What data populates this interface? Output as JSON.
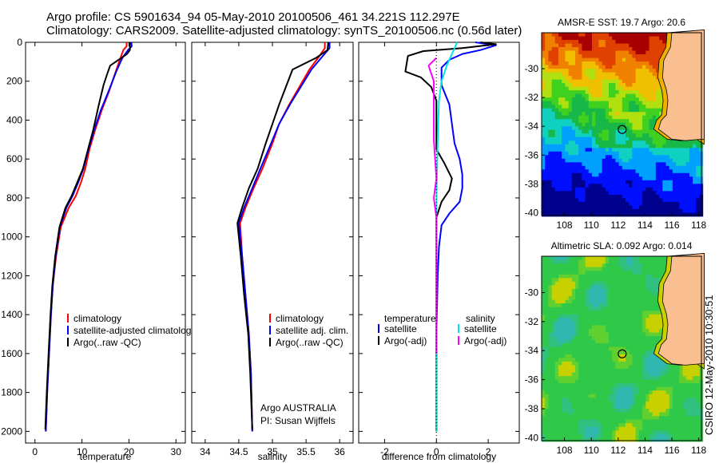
{
  "header": {
    "line1": "Argo profile: CS 5901634_94 05-May-2010 20100506_461 34.221S 112.297E",
    "line2": "Climatology: CARS2009. Satellite-adjusted climatology: synTS_20100506.nc (0.56d later)"
  },
  "side_label": "CSIRO 12-May-2010 10:30:51",
  "colors": {
    "climatology": "#ff0000",
    "satellite": "#0000ff",
    "argo": "#000000",
    "salinity_sat": "#00e5e5",
    "salinity_argo": "#ff00ff",
    "land": "#f9bf91",
    "frame": "#000000"
  },
  "chart_data": [
    {
      "id": "temperature",
      "type": "line",
      "xlabel": "temperature",
      "xlim": [
        -2,
        32
      ],
      "xticks": [
        0,
        10,
        20,
        30
      ],
      "ylim": [
        0,
        2060
      ],
      "yticks": [
        0,
        200,
        400,
        600,
        800,
        1000,
        1200,
        1400,
        1600,
        1800,
        2000
      ],
      "y_reversed": true,
      "legend": [
        "climatology",
        "satellite-adjusted climatology",
        "Argo(..raw -QC)"
      ],
      "series": [
        {
          "name": "climatology",
          "color": "#ff0000",
          "points": [
            [
              19.5,
              0
            ],
            [
              19.5,
              20
            ],
            [
              18.8,
              40
            ],
            [
              18.2,
              80
            ],
            [
              17.2,
              150
            ],
            [
              15.8,
              250
            ],
            [
              14.2,
              350
            ],
            [
              12.8,
              450
            ],
            [
              11.6,
              550
            ],
            [
              10.7,
              650
            ],
            [
              9.8,
              720
            ],
            [
              8.7,
              790
            ],
            [
              7.2,
              850
            ],
            [
              5.5,
              950
            ],
            [
              4.5,
              1100
            ],
            [
              3.8,
              1250
            ],
            [
              3.4,
              1400
            ],
            [
              3.0,
              1600
            ],
            [
              2.6,
              1800
            ],
            [
              2.3,
              2000
            ]
          ]
        },
        {
          "name": "satellite",
          "color": "#0000ff",
          "points": [
            [
              20.5,
              0
            ],
            [
              20.6,
              20
            ],
            [
              19.8,
              40
            ],
            [
              18.6,
              80
            ],
            [
              17.3,
              150
            ],
            [
              15.7,
              250
            ],
            [
              14.0,
              350
            ],
            [
              12.6,
              450
            ],
            [
              11.4,
              550
            ],
            [
              10.3,
              650
            ],
            [
              9.2,
              720
            ],
            [
              8.0,
              790
            ],
            [
              6.7,
              850
            ],
            [
              5.3,
              950
            ],
            [
              4.4,
              1100
            ],
            [
              3.8,
              1250
            ],
            [
              3.4,
              1400
            ],
            [
              3.0,
              1600
            ],
            [
              2.6,
              1800
            ],
            [
              2.3,
              2000
            ]
          ]
        },
        {
          "name": "Argo",
          "color": "#000000",
          "points": [
            [
              20.2,
              0
            ],
            [
              20.2,
              40
            ],
            [
              19.6,
              60
            ],
            [
              16.0,
              120
            ],
            [
              15.4,
              160
            ],
            [
              14.6,
              220
            ],
            [
              13.5,
              330
            ],
            [
              12.4,
              450
            ],
            [
              11.3,
              550
            ],
            [
              10.2,
              650
            ],
            [
              9.0,
              720
            ],
            [
              7.8,
              790
            ],
            [
              6.5,
              850
            ],
            [
              5.2,
              950
            ],
            [
              4.3,
              1100
            ],
            [
              3.7,
              1250
            ],
            [
              3.3,
              1400
            ],
            [
              2.9,
              1600
            ],
            [
              2.5,
              1800
            ],
            [
              2.2,
              1990
            ]
          ]
        }
      ]
    },
    {
      "id": "salinity",
      "type": "line",
      "xlabel": "salinity",
      "xlim": [
        33.8,
        36.2
      ],
      "xticks": [
        34,
        34.5,
        35,
        35.5,
        36
      ],
      "xtick_labels": [
        "34",
        "34.5",
        "35",
        "35.5",
        "36"
      ],
      "ylim": [
        0,
        2060
      ],
      "y_reversed": true,
      "legend": [
        "climatology",
        "satellite adj. clim.",
        "Argo(..raw -QC)"
      ],
      "annotation": [
        "Argo AUSTRALIA",
        "PI: Susan Wijffels"
      ],
      "series": [
        {
          "name": "climatology",
          "color": "#ff0000",
          "points": [
            [
              35.78,
              0
            ],
            [
              35.78,
              30
            ],
            [
              35.7,
              70
            ],
            [
              35.55,
              140
            ],
            [
              35.4,
              230
            ],
            [
              35.25,
              320
            ],
            [
              35.1,
              420
            ],
            [
              35.0,
              520
            ],
            [
              34.85,
              650
            ],
            [
              34.72,
              750
            ],
            [
              34.6,
              850
            ],
            [
              34.52,
              930
            ],
            [
              34.55,
              1100
            ],
            [
              34.6,
              1300
            ],
            [
              34.65,
              1500
            ],
            [
              34.68,
              1700
            ],
            [
              34.7,
              2000
            ]
          ]
        },
        {
          "name": "satellite",
          "color": "#0000ff",
          "points": [
            [
              35.85,
              0
            ],
            [
              35.85,
              30
            ],
            [
              35.75,
              70
            ],
            [
              35.58,
              140
            ],
            [
              35.42,
              230
            ],
            [
              35.26,
              320
            ],
            [
              35.1,
              420
            ],
            [
              34.98,
              520
            ],
            [
              34.82,
              650
            ],
            [
              34.7,
              750
            ],
            [
              34.58,
              850
            ],
            [
              34.5,
              930
            ],
            [
              34.55,
              1100
            ],
            [
              34.6,
              1300
            ],
            [
              34.65,
              1500
            ],
            [
              34.68,
              1700
            ],
            [
              34.7,
              2000
            ]
          ]
        },
        {
          "name": "Argo",
          "color": "#000000",
          "points": [
            [
              35.83,
              0
            ],
            [
              35.82,
              40
            ],
            [
              35.65,
              80
            ],
            [
              35.3,
              140
            ],
            [
              35.2,
              230
            ],
            [
              35.1,
              320
            ],
            [
              35.0,
              420
            ],
            [
              34.9,
              520
            ],
            [
              34.78,
              650
            ],
            [
              34.65,
              750
            ],
            [
              34.55,
              850
            ],
            [
              34.48,
              930
            ],
            [
              34.53,
              1100
            ],
            [
              34.58,
              1300
            ],
            [
              34.64,
              1500
            ],
            [
              34.67,
              1700
            ],
            [
              34.7,
              1990
            ]
          ]
        }
      ]
    },
    {
      "id": "difference",
      "type": "line",
      "xlabel": "difference from climatology",
      "xlim": [
        -3,
        3.2
      ],
      "xticks": [
        -2,
        0,
        2
      ],
      "ylim": [
        0,
        2060
      ],
      "y_reversed": true,
      "legend_left_title": "temperature",
      "legend_right_title": "salinity",
      "legend_left": [
        "satellite",
        "Argo(-adj)"
      ],
      "legend_right": [
        "satellite",
        "Argo(-adj)"
      ],
      "series": [
        {
          "name": "temperature satellite",
          "color": "#0000ff",
          "points": [
            [
              1.5,
              0
            ],
            [
              2.3,
              15
            ],
            [
              1.7,
              40
            ],
            [
              1.0,
              60
            ],
            [
              0.5,
              90
            ],
            [
              0.2,
              130
            ],
            [
              0.2,
              220
            ],
            [
              0.5,
              320
            ],
            [
              0.6,
              420
            ],
            [
              0.7,
              520
            ],
            [
              0.9,
              600
            ],
            [
              1.0,
              680
            ],
            [
              1.0,
              750
            ],
            [
              0.9,
              820
            ],
            [
              0.5,
              880
            ],
            [
              0.2,
              940
            ],
            [
              0.1,
              1050
            ],
            [
              0.05,
              1200
            ],
            [
              0.0,
              1500
            ],
            [
              0.0,
              2000
            ]
          ]
        },
        {
          "name": "temperature Argo",
          "color": "#000000",
          "points": [
            [
              1.7,
              0
            ],
            [
              2.3,
              10
            ],
            [
              1.0,
              30
            ],
            [
              -0.5,
              45
            ],
            [
              -1.1,
              70
            ],
            [
              -1.2,
              150
            ],
            [
              -0.6,
              180
            ],
            [
              -0.2,
              230
            ],
            [
              0.0,
              300
            ],
            [
              0.0,
              550
            ],
            [
              0.3,
              620
            ],
            [
              0.6,
              700
            ],
            [
              0.5,
              760
            ],
            [
              0.2,
              820
            ],
            [
              0.0,
              900
            ],
            [
              0.0,
              1100
            ],
            [
              0.0,
              1500
            ],
            [
              0.0,
              2000
            ]
          ]
        },
        {
          "name": "salinity satellite",
          "color": "#00e5e5",
          "points": [
            [
              0.8,
              0
            ],
            [
              0.6,
              60
            ],
            [
              0.4,
              120
            ],
            [
              0.2,
              200
            ],
            [
              0.1,
              300
            ],
            [
              0.05,
              500
            ],
            [
              0.0,
              800
            ],
            [
              0.0,
              1200
            ],
            [
              0.0,
              1600
            ],
            [
              0.0,
              2000
            ]
          ]
        },
        {
          "name": "salinity Argo",
          "color": "#ff00ff",
          "points": [
            [
              0.0,
              80
            ],
            [
              -0.3,
              120
            ],
            [
              -0.1,
              200
            ],
            [
              -0.1,
              300
            ],
            [
              -0.1,
              500
            ],
            [
              0.0,
              700
            ],
            [
              -0.1,
              800
            ],
            [
              0.0,
              900
            ],
            [
              0.0,
              1200
            ],
            [
              0.0,
              1600
            ]
          ]
        }
      ]
    },
    {
      "id": "sst_map",
      "type": "heatmap",
      "title": "AMSR-E SST: 19.7 Argo: 20.6",
      "xticks": [
        108,
        110,
        112,
        114,
        116,
        118
      ],
      "yticks": [
        -30,
        -32,
        -34,
        -36,
        -38,
        -40
      ],
      "xlim": [
        106.3,
        118.2
      ],
      "ylim": [
        -40.2,
        -27.5
      ],
      "marker": {
        "lon": 112.297,
        "lat": -34.221
      }
    },
    {
      "id": "sla_map",
      "type": "heatmap",
      "title": "Altimetric SLA: 0.092 Argo: 0.014",
      "xticks": [
        108,
        110,
        112,
        114,
        116,
        118
      ],
      "yticks": [
        -30,
        -32,
        -34,
        -36,
        -38,
        -40
      ],
      "xlim": [
        106.3,
        118.2
      ],
      "ylim": [
        -40.2,
        -27.5
      ],
      "marker": {
        "lon": 112.297,
        "lat": -34.221
      }
    }
  ]
}
